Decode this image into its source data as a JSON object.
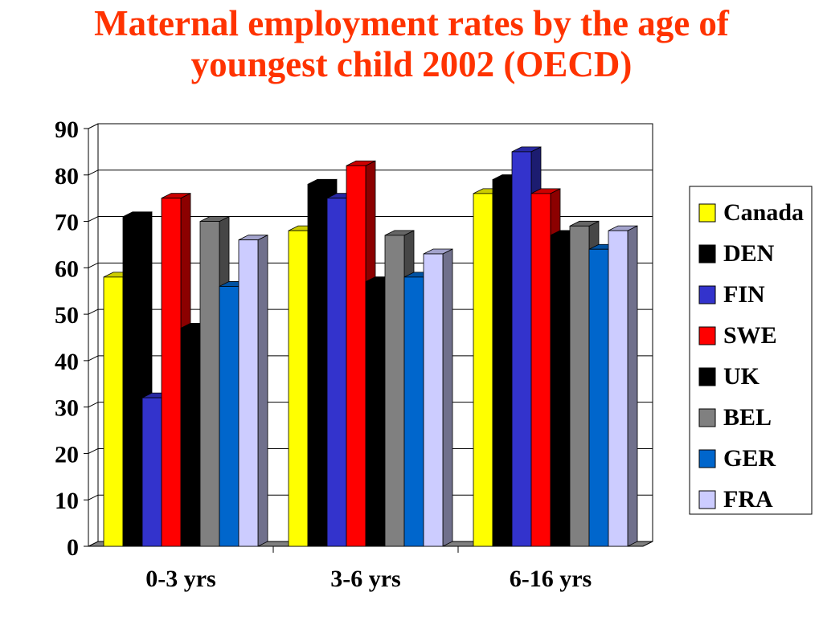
{
  "title_line1": "Maternal employment rates by the age of",
  "title_line2": "youngest child 2002 (OECD)",
  "colors": {
    "title": "#ff3300",
    "Canada": "#ffff00",
    "DEN": "#000000",
    "FIN": "#3333cc",
    "SWE": "#ff0000",
    "UK": "#000000",
    "BEL": "#808080",
    "GER": "#0066cc",
    "FRA": "#ccccff"
  },
  "chart_data": {
    "type": "bar",
    "style": "3d-clustered",
    "title": "Maternal employment rates by the age of youngest child 2002 (OECD)",
    "categories": [
      "0-3 yrs",
      "3-6 yrs",
      "6-16 yrs"
    ],
    "series": [
      {
        "name": "Canada",
        "values": [
          58,
          68,
          76
        ]
      },
      {
        "name": "DEN",
        "values": [
          71,
          78,
          79
        ]
      },
      {
        "name": "FIN",
        "values": [
          32,
          75,
          85
        ]
      },
      {
        "name": "SWE",
        "values": [
          75,
          82,
          76
        ]
      },
      {
        "name": "UK",
        "values": [
          47,
          57,
          67
        ]
      },
      {
        "name": "BEL",
        "values": [
          70,
          67,
          69
        ]
      },
      {
        "name": "GER",
        "values": [
          56,
          58,
          64
        ]
      },
      {
        "name": "FRA",
        "values": [
          66,
          63,
          68
        ]
      }
    ],
    "ylim": [
      0,
      90
    ],
    "yticks": [
      0,
      10,
      20,
      30,
      40,
      50,
      60,
      70,
      80,
      90
    ],
    "grid": true,
    "legend": "right"
  }
}
